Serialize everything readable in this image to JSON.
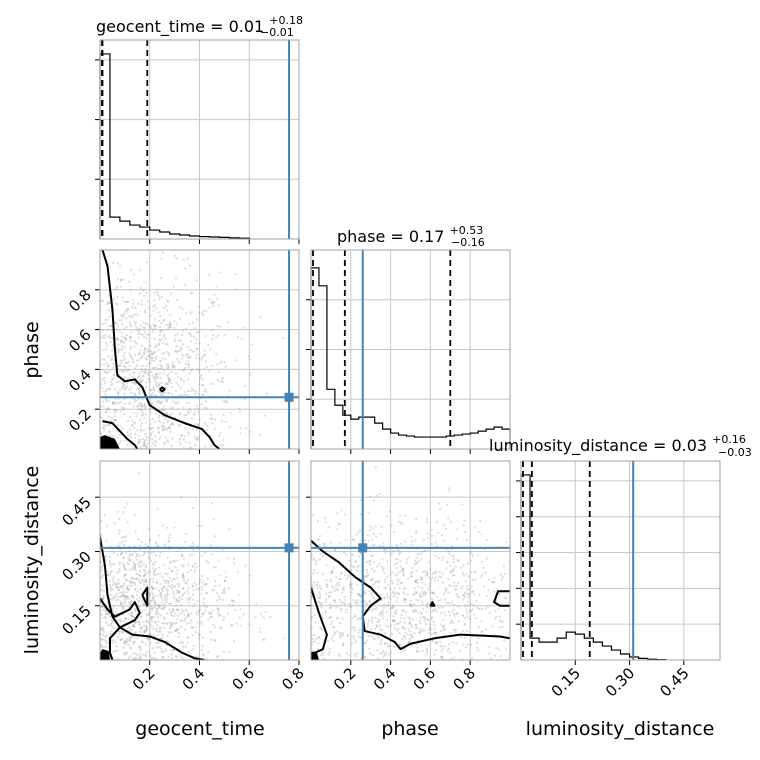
{
  "chart_data": {
    "type": "corner",
    "parameters": [
      "geocent_time",
      "phase",
      "luminosity_distance"
    ],
    "truths": {
      "geocent_time": 0.76,
      "phase": 0.26,
      "luminosity_distance": 0.31
    },
    "colors": {
      "truth": "#4682b4",
      "hist": "#000000",
      "quantile": "#000000",
      "grid": "#c8c8c8",
      "points": "#9a9a9a",
      "axes": "#a0a0a0"
    },
    "grid": true,
    "marginal_titles": [
      {
        "param": "geocent_time",
        "name": "geocent_time = 0.01",
        "sup": "+0.18",
        "sub": "−0.01"
      },
      {
        "param": "phase",
        "name": "phase = 0.17",
        "sup": "+0.53",
        "sub": "−0.16"
      },
      {
        "param": "luminosity_distance",
        "name": "luminosity_distance = 0.03",
        "sup": "+0.16",
        "sub": "−0.03"
      }
    ],
    "xlabels": [
      "geocent_time",
      "phase",
      "luminosity_distance"
    ],
    "ylabels": [
      "phase",
      "luminosity_distance"
    ],
    "ticks": {
      "geocent_time": {
        "range": [
          0.0,
          0.8
        ],
        "ticks": [
          0.2,
          0.4,
          0.6,
          0.8
        ],
        "labels": [
          "0.2",
          "0.4",
          "0.6",
          "0.8"
        ]
      },
      "phase": {
        "range": [
          0.0,
          1.0
        ],
        "x_ticks": [
          0.2,
          0.4,
          0.6,
          0.8
        ],
        "x_labels": [
          "0.2",
          "0.4",
          "0.6",
          "0.8"
        ],
        "y_ticks": [
          0.2,
          0.4,
          0.6,
          0.8
        ],
        "y_labels": [
          "0.2",
          "0.4",
          "0.6",
          "0.8"
        ]
      },
      "luminosity_distance": {
        "range": [
          0.0,
          0.55
        ],
        "ticks": [
          0.15,
          0.3,
          0.45
        ],
        "labels": [
          "0.15",
          "0.30",
          "0.45"
        ]
      }
    },
    "marginals": {
      "geocent_time": {
        "bin_edges": [
          0.0,
          0.04,
          0.08,
          0.12,
          0.16,
          0.2,
          0.24,
          0.28,
          0.32,
          0.36,
          0.4,
          0.44,
          0.48,
          0.52,
          0.56,
          0.6
        ],
        "values": [
          0.93,
          0.11,
          0.09,
          0.07,
          0.06,
          0.045,
          0.035,
          0.025,
          0.02,
          0.015,
          0.012,
          0.01,
          0.008,
          0.006,
          0.004
        ],
        "quantiles": [
          0.0,
          0.01,
          0.19
        ],
        "ylim": [
          0,
          1.0
        ],
        "yticks": [
          0.3,
          0.6,
          0.9
        ]
      },
      "phase": {
        "bin_edges": [
          0.0,
          0.04,
          0.08,
          0.12,
          0.16,
          0.2,
          0.24,
          0.28,
          0.32,
          0.36,
          0.4,
          0.44,
          0.48,
          0.52,
          0.56,
          0.6,
          0.64,
          0.68,
          0.72,
          0.76,
          0.8,
          0.84,
          0.88,
          0.92,
          0.96,
          1.0
        ],
        "values": [
          0.91,
          0.82,
          0.3,
          0.22,
          0.17,
          0.15,
          0.16,
          0.16,
          0.13,
          0.1,
          0.08,
          0.07,
          0.065,
          0.06,
          0.06,
          0.06,
          0.06,
          0.065,
          0.07,
          0.075,
          0.08,
          0.09,
          0.1,
          0.11,
          0.1
        ],
        "quantiles": [
          0.01,
          0.17,
          0.7
        ],
        "ylim": [
          0,
          1.0
        ],
        "yticks": [
          0.25,
          0.5,
          0.75
        ]
      },
      "luminosity_distance": {
        "bin_edges": [
          0.0,
          0.025,
          0.05,
          0.075,
          0.1,
          0.125,
          0.15,
          0.175,
          0.2,
          0.225,
          0.25,
          0.275,
          0.3,
          0.325,
          0.35,
          0.375,
          0.4
        ],
        "values": [
          0.93,
          0.11,
          0.09,
          0.09,
          0.11,
          0.14,
          0.13,
          0.11,
          0.09,
          0.07,
          0.05,
          0.03,
          0.015,
          0.008,
          0.004,
          0.002
        ],
        "quantiles": [
          0.0,
          0.03,
          0.19
        ],
        "ylim": [
          0,
          1.0
        ],
        "yticks": [
          0.18,
          0.36,
          0.54,
          0.72,
          0.9
        ]
      }
    },
    "joint": [
      {
        "x": "geocent_time",
        "y": "phase",
        "contours": [
          [
            [
              0.01,
              1.0
            ],
            [
              0.03,
              0.92
            ],
            [
              0.05,
              0.7
            ],
            [
              0.06,
              0.5
            ],
            [
              0.07,
              0.37
            ],
            [
              0.1,
              0.34
            ],
            [
              0.14,
              0.35
            ],
            [
              0.17,
              0.31
            ],
            [
              0.2,
              0.22
            ],
            [
              0.26,
              0.17
            ],
            [
              0.34,
              0.13
            ],
            [
              0.41,
              0.1
            ],
            [
              0.44,
              0.06
            ],
            [
              0.46,
              0.02
            ],
            [
              0.48,
              0.0
            ]
          ],
          [
            [
              0.01,
              0.14
            ],
            [
              0.05,
              0.13
            ],
            [
              0.08,
              0.09
            ],
            [
              0.11,
              0.05
            ],
            [
              0.14,
              0.02
            ],
            [
              0.15,
              0.0
            ]
          ],
          [
            [
              0.24,
              0.3
            ],
            [
              0.25,
              0.31
            ],
            [
              0.26,
              0.3
            ],
            [
              0.25,
              0.29
            ],
            [
              0.24,
              0.3
            ]
          ]
        ],
        "density_patch": [
          [
            0.0,
            0.0
          ],
          [
            0.08,
            0.0
          ],
          [
            0.06,
            0.05
          ],
          [
            0.02,
            0.07
          ],
          [
            0.0,
            0.06
          ]
        ],
        "point_cloud": {
          "cx": 0.2,
          "cy": 0.35,
          "sx": 0.17,
          "sy": 0.26,
          "count": 1100
        }
      },
      {
        "x": "geocent_time",
        "y": "luminosity_distance",
        "contours": [
          [
            [
              0.0,
              0.34
            ],
            [
              0.02,
              0.26
            ],
            [
              0.03,
              0.18
            ],
            [
              0.05,
              0.12
            ],
            [
              0.08,
              0.09
            ],
            [
              0.13,
              0.07
            ],
            [
              0.2,
              0.065
            ],
            [
              0.26,
              0.05
            ],
            [
              0.33,
              0.02
            ],
            [
              0.38,
              0.005
            ],
            [
              0.42,
              0.0
            ]
          ],
          [
            [
              0.0,
              0.17
            ],
            [
              0.03,
              0.14
            ],
            [
              0.06,
              0.12
            ],
            [
              0.12,
              0.14
            ],
            [
              0.14,
              0.16
            ],
            [
              0.16,
              0.13
            ],
            [
              0.14,
              0.11
            ],
            [
              0.08,
              0.09
            ],
            [
              0.04,
              0.06
            ],
            [
              0.04,
              0.02
            ],
            [
              0.05,
              0.0
            ]
          ],
          [
            [
              0.17,
              0.18
            ],
            [
              0.19,
              0.2
            ],
            [
              0.19,
              0.15
            ],
            [
              0.17,
              0.18
            ]
          ]
        ],
        "density_patch": [
          [
            0.0,
            0.0
          ],
          [
            0.04,
            0.0
          ],
          [
            0.035,
            0.025
          ],
          [
            0.01,
            0.03
          ],
          [
            0.0,
            0.02
          ]
        ],
        "point_cloud": {
          "cx": 0.18,
          "cy": 0.16,
          "sx": 0.17,
          "sy": 0.1,
          "count": 1100
        }
      },
      {
        "x": "phase",
        "y": "luminosity_distance",
        "contours": [
          [
            [
              0.0,
              0.33
            ],
            [
              0.06,
              0.3
            ],
            [
              0.14,
              0.27
            ],
            [
              0.22,
              0.23
            ],
            [
              0.3,
              0.2
            ],
            [
              0.35,
              0.17
            ],
            [
              0.3,
              0.15
            ],
            [
              0.26,
              0.12
            ],
            [
              0.27,
              0.08
            ],
            [
              0.35,
              0.07
            ],
            [
              0.42,
              0.05
            ],
            [
              0.45,
              0.03
            ],
            [
              0.5,
              0.045
            ],
            [
              0.62,
              0.06
            ],
            [
              0.75,
              0.07
            ],
            [
              0.95,
              0.065
            ],
            [
              1.0,
              0.06
            ]
          ],
          [
            [
              0.0,
              0.2
            ],
            [
              0.04,
              0.13
            ],
            [
              0.08,
              0.07
            ],
            [
              0.06,
              0.03
            ],
            [
              0.02,
              0.02
            ],
            [
              0.0,
              0.02
            ]
          ],
          [
            [
              1.0,
              0.19
            ],
            [
              0.94,
              0.19
            ],
            [
              0.92,
              0.16
            ],
            [
              0.95,
              0.15
            ],
            [
              1.0,
              0.15
            ]
          ],
          [
            [
              0.6,
              0.15
            ],
            [
              0.61,
              0.16
            ],
            [
              0.62,
              0.15
            ],
            [
              0.6,
              0.15
            ]
          ]
        ],
        "density_patch": [
          [
            0.0,
            0.0
          ],
          [
            0.04,
            0.0
          ],
          [
            0.03,
            0.02
          ],
          [
            0.0,
            0.02
          ]
        ],
        "point_cloud": {
          "cx": 0.45,
          "cy": 0.17,
          "sx": 0.3,
          "sy": 0.11,
          "count": 1100
        }
      }
    ]
  }
}
